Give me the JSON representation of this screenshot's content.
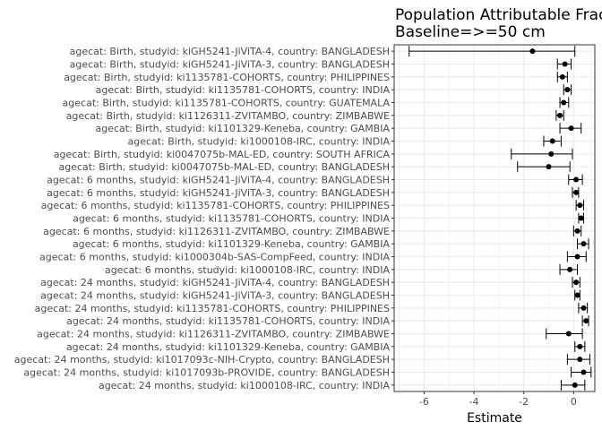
{
  "chart_data": {
    "type": "scatter",
    "title": "Population Attributable Fraction",
    "subtitle": "Baseline=>=50 cm",
    "xlabel": "Estimate",
    "ylabel": "",
    "xlim": [
      -7.2,
      0.85
    ],
    "xticks": [
      -6,
      -4,
      -2,
      0
    ],
    "grid": true,
    "colors": {
      "point": "#000000",
      "errorbar": "#000000",
      "grid": "#ebebeb",
      "panel_border": "#333333"
    },
    "rows": [
      {
        "label": "agecat: Birth, studyid: kiGH5241-JiViTA-4, country: BANGLADESH",
        "estimate": -1.65,
        "lower": -6.6,
        "upper": 0.05
      },
      {
        "label": "agecat: Birth, studyid: kiGH5241-JiViTA-3, country: BANGLADESH",
        "estimate": -0.35,
        "lower": -0.65,
        "upper": -0.1
      },
      {
        "label": "agecat: Birth, studyid: ki1135781-COHORTS, country: PHILIPPINES",
        "estimate": -0.45,
        "lower": -0.65,
        "upper": -0.25
      },
      {
        "label": "agecat: Birth, studyid: ki1135781-COHORTS, country: INDIA",
        "estimate": -0.25,
        "lower": -0.4,
        "upper": -0.1
      },
      {
        "label": "agecat: Birth, studyid: ki1135781-COHORTS, country: GUATEMALA",
        "estimate": -0.4,
        "lower": -0.55,
        "upper": -0.2
      },
      {
        "label": "agecat: Birth, studyid: ki1126311-ZVITAMBO, country: ZIMBABWE",
        "estimate": -0.55,
        "lower": -0.7,
        "upper": -0.4
      },
      {
        "label": "agecat: Birth, studyid: ki1101329-Keneba, country: GAMBIA",
        "estimate": -0.1,
        "lower": -0.55,
        "upper": 0.3
      },
      {
        "label": "agecat: Birth, studyid: ki1000108-IRC, country: INDIA",
        "estimate": -0.85,
        "lower": -1.2,
        "upper": -0.5
      },
      {
        "label": "agecat: Birth, studyid: ki0047075b-MAL-ED, country: SOUTH AFRICA",
        "estimate": -0.9,
        "lower": -2.5,
        "upper": -0.05
      },
      {
        "label": "agecat: Birth, studyid: ki0047075b-MAL-ED, country: BANGLADESH",
        "estimate": -1.0,
        "lower": -2.25,
        "upper": -0.15
      },
      {
        "label": "agecat: 6 months, studyid: kiGH5241-JiViTA-4, country: BANGLADESH",
        "estimate": 0.1,
        "lower": -0.2,
        "upper": 0.35
      },
      {
        "label": "agecat: 6 months, studyid: kiGH5241-JiViTA-3, country: BANGLADESH",
        "estimate": 0.1,
        "lower": -0.05,
        "upper": 0.2
      },
      {
        "label": "agecat: 6 months, studyid: ki1135781-COHORTS, country: PHILIPPINES",
        "estimate": 0.25,
        "lower": 0.1,
        "upper": 0.4
      },
      {
        "label": "agecat: 6 months, studyid: ki1135781-COHORTS, country: INDIA",
        "estimate": 0.3,
        "lower": 0.2,
        "upper": 0.4
      },
      {
        "label": "agecat: 6 months, studyid: ki1126311-ZVITAMBO, country: ZIMBABWE",
        "estimate": 0.15,
        "lower": 0.0,
        "upper": 0.3
      },
      {
        "label": "agecat: 6 months, studyid: ki1101329-Keneba, country: GAMBIA",
        "estimate": 0.4,
        "lower": 0.15,
        "upper": 0.6
      },
      {
        "label": "agecat: 6 months, studyid: ki1000304b-SAS-CompFeed, country: INDIA",
        "estimate": 0.15,
        "lower": -0.25,
        "upper": 0.5
      },
      {
        "label": "agecat: 6 months, studyid: ki1000108-IRC, country: INDIA",
        "estimate": -0.15,
        "lower": -0.55,
        "upper": 0.15
      },
      {
        "label": "agecat: 24 months, studyid: kiGH5241-JiViTA-4, country: BANGLADESH",
        "estimate": 0.1,
        "lower": -0.05,
        "upper": 0.25
      },
      {
        "label": "agecat: 24 months, studyid: kiGH5241-JiViTA-3, country: BANGLADESH",
        "estimate": 0.15,
        "lower": 0.05,
        "upper": 0.25
      },
      {
        "label": "agecat: 24 months, studyid: ki1135781-COHORTS, country: PHILIPPINES",
        "estimate": 0.4,
        "lower": 0.2,
        "upper": 0.55
      },
      {
        "label": "agecat: 24 months, studyid: ki1135781-COHORTS, country: INDIA",
        "estimate": 0.5,
        "lower": 0.35,
        "upper": 0.6
      },
      {
        "label": "agecat: 24 months, studyid: ki1126311-ZVITAMBO, country: ZIMBABWE",
        "estimate": -0.2,
        "lower": -1.1,
        "upper": 0.35
      },
      {
        "label": "agecat: 24 months, studyid: ki1101329-Keneba, country: GAMBIA",
        "estimate": 0.25,
        "lower": 0.05,
        "upper": 0.45
      },
      {
        "label": "agecat: 24 months, studyid: ki1017093c-NIH-Crypto, country: BANGLADESH",
        "estimate": 0.25,
        "lower": -0.25,
        "upper": 0.65
      },
      {
        "label": "agecat: 24 months, studyid: ki1017093b-PROVIDE, country: BANGLADESH",
        "estimate": 0.4,
        "lower": -0.1,
        "upper": 0.7
      },
      {
        "label": "agecat: 24 months, studyid: ki1000108-IRC, country: INDIA",
        "estimate": 0.05,
        "lower": -0.5,
        "upper": 0.45
      }
    ]
  }
}
